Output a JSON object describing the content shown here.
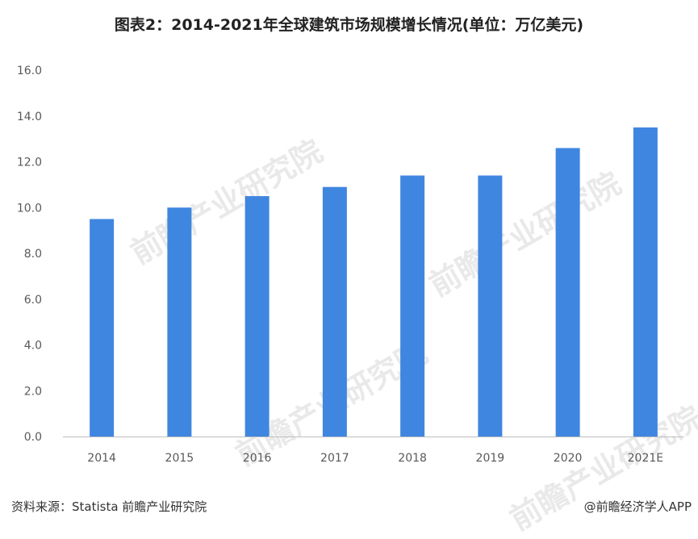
{
  "title": "图表2：2014-2021年全球建筑市场规模增长情况(单位：万亿美元)",
  "source": "资料来源：Statista 前瞻产业研究院",
  "credit": "@前瞻经济学人APP",
  "watermark": "前瞻产业研究院",
  "colors": {
    "bar": "#3f86e0",
    "axis": "#bfbfbf",
    "tick_text": "#595959"
  },
  "chart_data": {
    "type": "bar",
    "categories": [
      "2014",
      "2015",
      "2016",
      "2017",
      "2018",
      "2019",
      "2020",
      "2021E"
    ],
    "values": [
      9.5,
      10.0,
      10.5,
      10.9,
      11.4,
      11.4,
      12.6,
      13.5
    ],
    "yticks": [
      "0.0",
      "2.0",
      "4.0",
      "6.0",
      "8.0",
      "10.0",
      "12.0",
      "14.0",
      "16.0"
    ],
    "ylim": [
      0,
      16
    ],
    "grid": false,
    "xlabel": "",
    "ylabel": ""
  }
}
